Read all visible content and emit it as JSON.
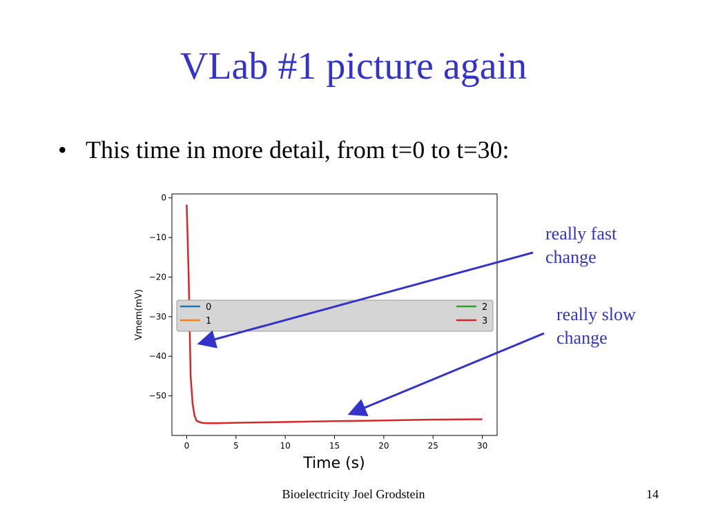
{
  "slide": {
    "title": "VLab #1 picture again",
    "bullet": "This time in more detail, from t=0 to t=30:",
    "annotations": {
      "fast": [
        "really fast",
        "change"
      ],
      "slow": [
        "really slow",
        "change"
      ]
    },
    "footer": "Bioelectricity Joel Grodstein",
    "page_number": "14"
  },
  "colors": {
    "title": "#3333cc",
    "annotation": "#3333cc",
    "series_0": "#1f77b4",
    "series_1": "#ff7f0e",
    "series_2": "#2ca02c",
    "series_3": "#d62728"
  },
  "chart_data": {
    "type": "line",
    "xlabel": "Time (s)",
    "ylabel": "Vmem(mV)",
    "xlim": [
      -1.5,
      31.5
    ],
    "ylim": [
      -60,
      1
    ],
    "xticks": [
      0,
      5,
      10,
      15,
      20,
      25,
      30
    ],
    "yticks": [
      0,
      -10,
      -20,
      -30,
      -40,
      -50
    ],
    "x_tick_labels": [
      "0",
      "5",
      "10",
      "15",
      "20",
      "25",
      "30"
    ],
    "y_tick_labels": [
      "0",
      "−10",
      "−20",
      "−30",
      "−40",
      "−50"
    ],
    "legend": {
      "placement": "center band",
      "entries": [
        "0",
        "1",
        "2",
        "3"
      ]
    },
    "series": [
      {
        "name": "3",
        "x": [
          0,
          0.2,
          0.4,
          0.6,
          0.8,
          1.0,
          1.5,
          2,
          3,
          5,
          10,
          15,
          20,
          25,
          30
        ],
        "values": [
          -1.7,
          -20,
          -45,
          -52,
          -55,
          -56.3,
          -56.8,
          -56.9,
          -56.9,
          -56.8,
          -56.6,
          -56.4,
          -56.2,
          -56.0,
          -55.9
        ]
      }
    ]
  }
}
